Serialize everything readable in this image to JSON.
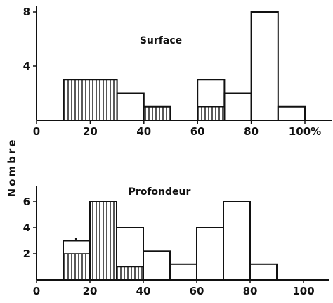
{
  "chart_data": [
    {
      "type": "bar",
      "title": "Surface",
      "ylabel": "Nombre",
      "xlim": [
        0,
        100
      ],
      "ylim": [
        0,
        8
      ],
      "x_ticks": [
        "0",
        "20",
        "40",
        "60",
        "80",
        "100%"
      ],
      "y_ticks": [
        "4",
        "8"
      ],
      "bins": [
        {
          "x0": 10,
          "x1": 30,
          "value": 3,
          "hatched_value": 3
        },
        {
          "x0": 30,
          "x1": 40,
          "value": 2,
          "hatched_value": 0
        },
        {
          "x0": 40,
          "x1": 50,
          "value": 1,
          "hatched_value": 1
        },
        {
          "x0": 60,
          "x1": 70,
          "value": 3,
          "hatched_value": 1
        },
        {
          "x0": 70,
          "x1": 80,
          "value": 2,
          "hatched_value": 0
        },
        {
          "x0": 80,
          "x1": 90,
          "value": 8,
          "hatched_value": 0
        },
        {
          "x0": 90,
          "x1": 100,
          "value": 1,
          "hatched_value": 0
        }
      ]
    },
    {
      "type": "bar",
      "title": "Profondeur",
      "xlim": [
        0,
        100
      ],
      "ylim": [
        0,
        7
      ],
      "x_ticks": [
        "0",
        "20",
        "40",
        "60",
        "80",
        "100"
      ],
      "y_ticks": [
        "2",
        "4",
        "6"
      ],
      "bins": [
        {
          "x0": 10,
          "x1": 20,
          "value": 3,
          "hatched_value": 2
        },
        {
          "x0": 20,
          "x1": 30,
          "value": 6,
          "hatched_value": 6
        },
        {
          "x0": 30,
          "x1": 40,
          "value": 4,
          "hatched_value": 1
        },
        {
          "x0": 40,
          "x1": 50,
          "value": 2.2,
          "hatched_value": 0
        },
        {
          "x0": 50,
          "x1": 60,
          "value": 1.2,
          "hatched_value": 0
        },
        {
          "x0": 60,
          "x1": 70,
          "value": 4,
          "hatched_value": 0
        },
        {
          "x0": 70,
          "x1": 80,
          "value": 6,
          "hatched_value": 0
        },
        {
          "x0": 80,
          "x1": 90,
          "value": 1.2,
          "hatched_value": 0
        }
      ]
    }
  ]
}
